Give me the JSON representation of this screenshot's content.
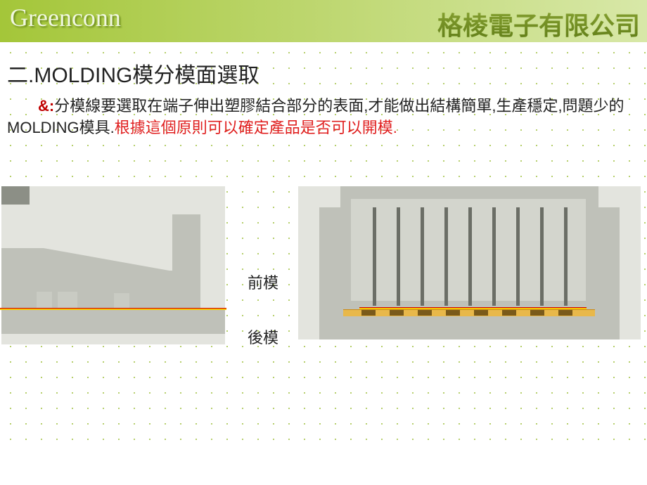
{
  "header": {
    "logo_left": "Greenconn",
    "logo_right": "格棱電子有限公司"
  },
  "title": "二.MOLDING模分模面選取",
  "paragraph": {
    "prefix": "&:",
    "body_part1": "分模線要選取在端子伸出塑膠結合部分的表面,才能做出結構簡單,生產穩定,問題少的MOLDING模具.",
    "body_red": "根據這個原則可以確定產品是否可以開模."
  },
  "labels": {
    "front": "前模",
    "back": "後模"
  },
  "colors": {
    "header_grad_start": "#a4c639",
    "header_grad_end": "#d8e8a8",
    "dot_color": "#9dbf3b",
    "diagram_bg": "#e3e4de",
    "shape_fill": "#bfc1b9",
    "shape_fill_light": "#d3d5cd",
    "shape_fill_dark": "#8c8f86",
    "pin_color": "#6b6e66",
    "line_red": "#d00000",
    "line_yellow": "#f7c400",
    "gold": "#e8b84a",
    "tab_brown": "#7a5a1a",
    "text_red": "#e02020",
    "amp_red": "#c00000"
  },
  "diagram2": {
    "pin_count": 9,
    "pin_x_start": 106,
    "pin_spacing": 34,
    "tab_count": 8,
    "tab_x_start": 90,
    "tab_spacing": 40
  }
}
